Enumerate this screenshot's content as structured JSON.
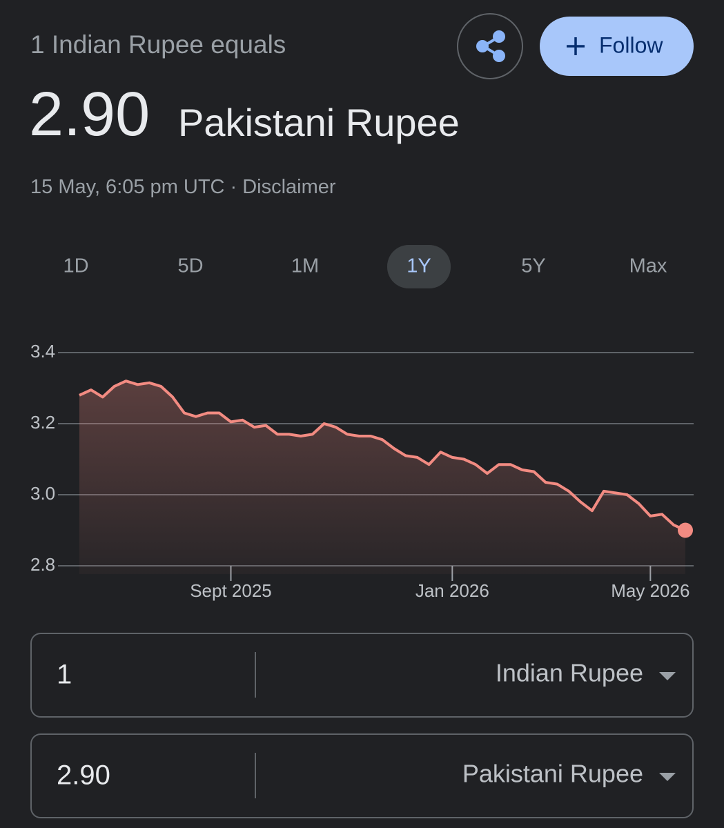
{
  "header": {
    "subtitle": "1 Indian Rupee equals",
    "value": "2.90",
    "currency": "Pakistani Rupee",
    "timestamp": "15 May, 6:05 pm UTC",
    "separator": "·",
    "disclaimer": "Disclaimer"
  },
  "follow_button": "Follow",
  "tabs": [
    {
      "label": "1D"
    },
    {
      "label": "5D"
    },
    {
      "label": "1M"
    },
    {
      "label": "1Y",
      "selected": true
    },
    {
      "label": "5Y"
    },
    {
      "label": "Max"
    }
  ],
  "chart_data": {
    "type": "line",
    "color": "#f28b82",
    "categories": [
      null,
      null,
      null,
      null,
      null,
      null,
      null,
      null,
      null,
      null,
      null,
      null,
      null,
      "Sept 2025",
      null,
      null,
      null,
      null,
      null,
      null,
      null,
      null,
      null,
      null,
      null,
      null,
      null,
      null,
      null,
      null,
      null,
      null,
      "Jan 2026",
      null,
      null,
      null,
      null,
      null,
      null,
      null,
      null,
      null,
      null,
      null,
      null,
      null,
      null,
      null,
      null,
      "May 2026",
      null,
      null,
      null
    ],
    "values": [
      3.28,
      3.295,
      3.275,
      3.305,
      3.32,
      3.31,
      3.315,
      3.305,
      3.275,
      3.23,
      3.22,
      3.23,
      3.23,
      3.205,
      3.21,
      3.19,
      3.195,
      3.17,
      3.17,
      3.165,
      3.17,
      3.2,
      3.19,
      3.17,
      3.165,
      3.165,
      3.155,
      3.13,
      3.11,
      3.105,
      3.085,
      3.12,
      3.105,
      3.1,
      3.085,
      3.06,
      3.085,
      3.085,
      3.07,
      3.065,
      3.035,
      3.03,
      3.01,
      2.98,
      2.955,
      3.01,
      3.005,
      3.0,
      2.975,
      2.94,
      2.945,
      2.915,
      2.9
    ],
    "ylim": [
      2.8,
      3.4
    ],
    "yticks": [
      3.4,
      3.2,
      {
        "value": 3,
        "label": "3.0"
      },
      2.8
    ],
    "grid": true
  },
  "converter": [
    {
      "amount": "1",
      "currency": "Indian Rupee"
    },
    {
      "amount": "2.90",
      "currency": "Pakistani Rupee"
    }
  ]
}
